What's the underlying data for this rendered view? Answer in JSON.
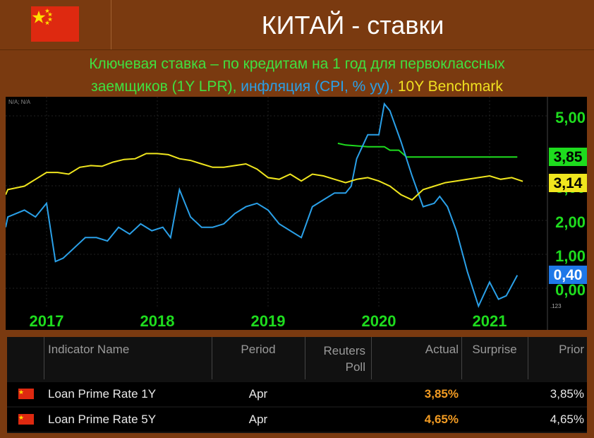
{
  "header": {
    "title": "КИТАЙ - ставки"
  },
  "subtitle": {
    "part1": "Ключевая ставка – по кредитам на 1 год для первоклассных",
    "part2": "заемщиков (1Y LPR), ",
    "part3": "инфляция (CPI, % yy), ",
    "part4": "10Y Benchmark"
  },
  "colors": {
    "lpr": "#1edc1e",
    "cpi": "#2aa0e8",
    "bench": "#f0e61e",
    "background": "#7a3a10"
  },
  "chart_data": {
    "type": "line",
    "corner_label": "N/A; N/A",
    "axis_corner": ".123",
    "xlabels": [
      "2017",
      "2018",
      "2019",
      "2020",
      "2021"
    ],
    "ytick_labels": [
      "5,00",
      "3,00",
      "2,00",
      "1,00",
      "0,00"
    ],
    "ylim": [
      -0.5,
      5.6
    ],
    "series": [
      {
        "name": "1Y LPR",
        "color": "#1edc1e",
        "end_label": "3,85",
        "points": [
          [
            2019.63,
            4.25
          ],
          [
            2019.7,
            4.2
          ],
          [
            2019.9,
            4.15
          ],
          [
            2020.05,
            4.15
          ],
          [
            2020.1,
            4.05
          ],
          [
            2020.18,
            4.05
          ],
          [
            2020.25,
            3.85
          ],
          [
            2021.25,
            3.85
          ]
        ]
      },
      {
        "name": "CPI",
        "color": "#2aa0e8",
        "end_label": "0,40",
        "points": [
          [
            2016.5,
            1.8
          ],
          [
            2016.65,
            2.1
          ],
          [
            2016.8,
            2.3
          ],
          [
            2016.9,
            2.1
          ],
          [
            2017.0,
            2.5
          ],
          [
            2017.08,
            0.8
          ],
          [
            2017.15,
            0.9
          ],
          [
            2017.25,
            1.2
          ],
          [
            2017.35,
            1.5
          ],
          [
            2017.45,
            1.5
          ],
          [
            2017.55,
            1.4
          ],
          [
            2017.65,
            1.8
          ],
          [
            2017.75,
            1.6
          ],
          [
            2017.85,
            1.9
          ],
          [
            2017.95,
            1.7
          ],
          [
            2018.05,
            1.8
          ],
          [
            2018.12,
            1.5
          ],
          [
            2018.2,
            2.9
          ],
          [
            2018.3,
            2.1
          ],
          [
            2018.4,
            1.8
          ],
          [
            2018.5,
            1.8
          ],
          [
            2018.6,
            1.9
          ],
          [
            2018.7,
            2.2
          ],
          [
            2018.8,
            2.4
          ],
          [
            2018.9,
            2.5
          ],
          [
            2019.0,
            2.3
          ],
          [
            2019.1,
            1.9
          ],
          [
            2019.2,
            1.7
          ],
          [
            2019.3,
            1.5
          ],
          [
            2019.4,
            2.4
          ],
          [
            2019.5,
            2.6
          ],
          [
            2019.6,
            2.8
          ],
          [
            2019.7,
            2.8
          ],
          [
            2019.75,
            3.0
          ],
          [
            2019.8,
            3.8
          ],
          [
            2019.9,
            4.5
          ],
          [
            2020.0,
            4.5
          ],
          [
            2020.05,
            5.4
          ],
          [
            2020.1,
            5.2
          ],
          [
            2020.2,
            4.3
          ],
          [
            2020.3,
            3.3
          ],
          [
            2020.4,
            2.4
          ],
          [
            2020.5,
            2.5
          ],
          [
            2020.55,
            2.7
          ],
          [
            2020.62,
            2.4
          ],
          [
            2020.7,
            1.7
          ],
          [
            2020.8,
            0.5
          ],
          [
            2020.9,
            -0.5
          ],
          [
            2021.0,
            0.2
          ],
          [
            2021.08,
            -0.3
          ],
          [
            2021.15,
            -0.2
          ],
          [
            2021.25,
            0.4
          ]
        ]
      },
      {
        "name": "10Y Benchmark",
        "color": "#f0e61e",
        "end_label": "3,14",
        "points": [
          [
            2016.5,
            2.75
          ],
          [
            2016.65,
            2.9
          ],
          [
            2016.8,
            3.0
          ],
          [
            2016.9,
            3.2
          ],
          [
            2017.0,
            3.4
          ],
          [
            2017.1,
            3.4
          ],
          [
            2017.2,
            3.35
          ],
          [
            2017.3,
            3.55
          ],
          [
            2017.4,
            3.6
          ],
          [
            2017.5,
            3.58
          ],
          [
            2017.6,
            3.7
          ],
          [
            2017.7,
            3.78
          ],
          [
            2017.8,
            3.8
          ],
          [
            2017.9,
            3.95
          ],
          [
            2018.0,
            3.95
          ],
          [
            2018.1,
            3.92
          ],
          [
            2018.2,
            3.8
          ],
          [
            2018.3,
            3.75
          ],
          [
            2018.4,
            3.65
          ],
          [
            2018.5,
            3.55
          ],
          [
            2018.6,
            3.55
          ],
          [
            2018.7,
            3.6
          ],
          [
            2018.8,
            3.65
          ],
          [
            2018.9,
            3.5
          ],
          [
            2019.0,
            3.25
          ],
          [
            2019.1,
            3.2
          ],
          [
            2019.2,
            3.35
          ],
          [
            2019.3,
            3.15
          ],
          [
            2019.4,
            3.35
          ],
          [
            2019.5,
            3.3
          ],
          [
            2019.6,
            3.2
          ],
          [
            2019.7,
            3.1
          ],
          [
            2019.8,
            3.2
          ],
          [
            2019.9,
            3.25
          ],
          [
            2020.0,
            3.15
          ],
          [
            2020.1,
            3.0
          ],
          [
            2020.2,
            2.75
          ],
          [
            2020.3,
            2.6
          ],
          [
            2020.4,
            2.9
          ],
          [
            2020.5,
            3.0
          ],
          [
            2020.6,
            3.1
          ],
          [
            2020.7,
            3.15
          ],
          [
            2020.8,
            3.2
          ],
          [
            2020.9,
            3.25
          ],
          [
            2021.0,
            3.3
          ],
          [
            2021.1,
            3.2
          ],
          [
            2021.2,
            3.25
          ],
          [
            2021.3,
            3.14
          ]
        ]
      }
    ]
  },
  "table": {
    "headers": {
      "name": "Indicator Name",
      "period": "Period",
      "source_l1": "Reuters",
      "source_l2": "Poll",
      "actual": "Actual",
      "surprise": "Surprise",
      "prior": "Prior"
    },
    "rows": [
      {
        "name": "Loan Prime Rate 1Y",
        "period": "Apr",
        "poll": "",
        "actual": "3,85%",
        "surprise": "",
        "prior": "3,85%"
      },
      {
        "name": "Loan Prime Rate 5Y",
        "period": "Apr",
        "poll": "",
        "actual": "4,65%",
        "surprise": "",
        "prior": "4,65%"
      }
    ]
  }
}
